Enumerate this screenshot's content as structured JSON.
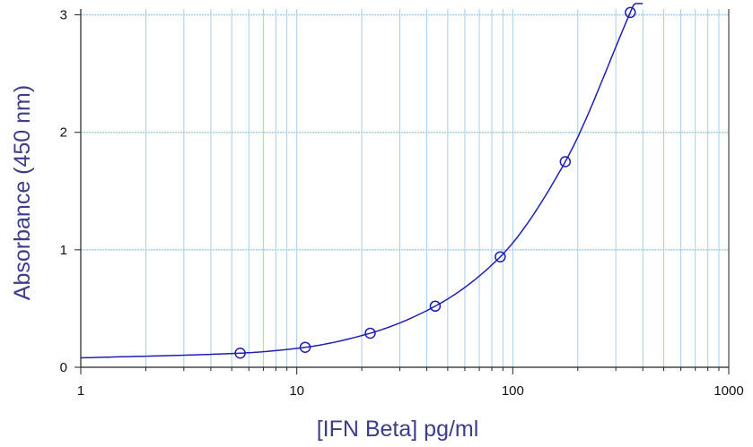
{
  "chart_data": {
    "type": "scatter",
    "xlabel": "[IFN Beta] pg/ml",
    "ylabel": "Absorbance (450 nm)",
    "x_scale": "log",
    "xlim": [
      1,
      1000
    ],
    "ylim": [
      0,
      3.05
    ],
    "x_ticks": [
      {
        "value": 1,
        "label": "1"
      },
      {
        "value": 10,
        "label": "10"
      },
      {
        "value": 100,
        "label": "100"
      },
      {
        "value": 1000,
        "label": "1000"
      }
    ],
    "y_ticks": [
      {
        "value": 0,
        "label": "0"
      },
      {
        "value": 1,
        "label": "1"
      },
      {
        "value": 2,
        "label": "2"
      },
      {
        "value": 3,
        "label": "3"
      }
    ],
    "grid": true,
    "series": [
      {
        "points": [
          {
            "x": 5.47,
            "y": 0.12
          },
          {
            "x": 10.94,
            "y": 0.17
          },
          {
            "x": 21.88,
            "y": 0.29
          },
          {
            "x": 43.75,
            "y": 0.52
          },
          {
            "x": 87.5,
            "y": 0.94
          },
          {
            "x": 175,
            "y": 1.75
          },
          {
            "x": 350,
            "y": 3.02
          }
        ],
        "marker": "open-circle",
        "fit": "curve"
      }
    ],
    "colors": {
      "series": "#1f1fb4",
      "grid": "#a9cde9",
      "axis_label": "#3d3d8a",
      "axis": "#222222"
    }
  }
}
